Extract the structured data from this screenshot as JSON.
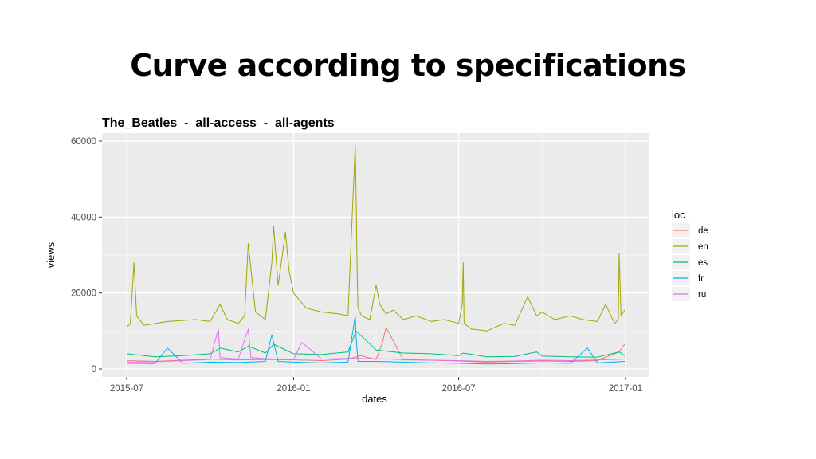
{
  "slide": {
    "title": "Curve according to specifications"
  },
  "chart_data": {
    "type": "line",
    "title": "The_Beatles  -  all-access  -  all-agents",
    "xlabel": "dates",
    "ylabel": "views",
    "xlim": [
      "2015-07-01",
      "2017-01-01"
    ],
    "ylim": [
      0,
      60000
    ],
    "x_ticks": [
      "2015-07",
      "2016-01",
      "2016-07",
      "2017-01"
    ],
    "y_ticks": [
      0,
      20000,
      40000,
      60000
    ],
    "grid": true,
    "legend": {
      "title": "loc",
      "position": "right"
    },
    "series": [
      {
        "name": "de",
        "color": "#F8766D",
        "x": [
          "2015-07-01",
          "2015-08-01",
          "2015-09-01",
          "2015-10-01",
          "2015-11-01",
          "2015-12-01",
          "2016-01-01",
          "2016-02-01",
          "2016-03-01",
          "2016-03-15",
          "2016-04-01",
          "2016-04-08",
          "2016-04-12",
          "2016-05-01",
          "2016-06-01",
          "2016-07-01",
          "2016-08-01",
          "2016-09-01",
          "2016-10-01",
          "2016-11-01",
          "2016-12-01",
          "2016-12-25",
          "2016-12-31"
        ],
        "values": [
          2200,
          2000,
          2300,
          2600,
          2400,
          2500,
          2400,
          2200,
          2600,
          3500,
          2500,
          7000,
          11000,
          2400,
          2300,
          2100,
          1800,
          2000,
          2100,
          2000,
          2200,
          4500,
          6500
        ]
      },
      {
        "name": "en",
        "color": "#A3A500",
        "x": [
          "2015-07-01",
          "2015-07-05",
          "2015-07-09",
          "2015-07-12",
          "2015-07-20",
          "2015-08-15",
          "2015-09-15",
          "2015-10-01",
          "2015-10-12",
          "2015-10-20",
          "2015-11-01",
          "2015-11-08",
          "2015-11-12",
          "2015-11-20",
          "2015-12-01",
          "2015-12-08",
          "2015-12-10",
          "2015-12-15",
          "2015-12-23",
          "2015-12-27",
          "2016-01-01",
          "2016-01-15",
          "2016-02-01",
          "2016-02-20",
          "2016-03-01",
          "2016-03-09",
          "2016-03-10",
          "2016-03-11",
          "2016-03-12",
          "2016-03-16",
          "2016-03-25",
          "2016-04-01",
          "2016-04-05",
          "2016-04-12",
          "2016-04-20",
          "2016-05-01",
          "2016-05-15",
          "2016-06-01",
          "2016-06-15",
          "2016-07-01",
          "2016-07-05",
          "2016-07-06",
          "2016-07-07",
          "2016-07-15",
          "2016-08-01",
          "2016-08-20",
          "2016-09-01",
          "2016-09-15",
          "2016-09-25",
          "2016-10-01",
          "2016-10-15",
          "2016-11-01",
          "2016-11-15",
          "2016-12-01",
          "2016-12-10",
          "2016-12-20",
          "2016-12-24",
          "2016-12-25",
          "2016-12-27",
          "2016-12-31"
        ],
        "values": [
          11000,
          12000,
          28000,
          14000,
          11500,
          12500,
          13000,
          12500,
          17000,
          13000,
          12000,
          14000,
          33000,
          15000,
          13000,
          28000,
          37500,
          22000,
          36000,
          26000,
          20000,
          16000,
          15000,
          14500,
          14000,
          59000,
          44000,
          27000,
          16000,
          14000,
          13000,
          22000,
          17000,
          14500,
          15500,
          13000,
          14000,
          12500,
          13000,
          12000,
          17000,
          28000,
          12000,
          10500,
          10000,
          12000,
          11500,
          19000,
          14000,
          15000,
          13000,
          14000,
          13000,
          12500,
          17000,
          12000,
          13000,
          30500,
          14000,
          15500
        ]
      },
      {
        "name": "es",
        "color": "#00BF7D",
        "x": [
          "2015-07-01",
          "2015-08-01",
          "2015-09-01",
          "2015-10-01",
          "2015-10-12",
          "2015-11-01",
          "2015-11-12",
          "2015-12-01",
          "2015-12-10",
          "2016-01-01",
          "2016-02-01",
          "2016-03-01",
          "2016-03-10",
          "2016-04-01",
          "2016-05-01",
          "2016-06-01",
          "2016-07-01",
          "2016-07-06",
          "2016-08-01",
          "2016-09-01",
          "2016-09-25",
          "2016-10-01",
          "2016-11-01",
          "2016-12-01",
          "2016-12-25",
          "2016-12-31"
        ],
        "values": [
          4000,
          3200,
          3500,
          4000,
          5500,
          4500,
          6000,
          4200,
          6500,
          4000,
          3800,
          4500,
          10000,
          5000,
          4200,
          4000,
          3500,
          4200,
          3200,
          3300,
          4500,
          3400,
          3200,
          3100,
          4500,
          3500
        ]
      },
      {
        "name": "fr",
        "color": "#00B0F6",
        "x": [
          "2015-07-01",
          "2015-08-01",
          "2015-08-15",
          "2015-09-01",
          "2015-10-01",
          "2015-11-01",
          "2015-12-01",
          "2015-12-08",
          "2015-12-10",
          "2015-12-15",
          "2016-01-01",
          "2016-02-01",
          "2016-03-01",
          "2016-03-09",
          "2016-03-10",
          "2016-03-12",
          "2016-04-01",
          "2016-05-01",
          "2016-06-01",
          "2016-07-01",
          "2016-08-01",
          "2016-09-01",
          "2016-10-01",
          "2016-11-01",
          "2016-11-20",
          "2016-12-01",
          "2016-12-31"
        ],
        "values": [
          1500,
          1400,
          5500,
          1500,
          1800,
          1700,
          2000,
          9000,
          7000,
          2000,
          1800,
          1600,
          1800,
          14000,
          8000,
          2000,
          2000,
          1800,
          1600,
          1500,
          1300,
          1400,
          1600,
          1500,
          5500,
          1600,
          2000
        ]
      },
      {
        "name": "ru",
        "color": "#E76BF3",
        "x": [
          "2015-07-01",
          "2015-08-01",
          "2015-09-01",
          "2015-10-01",
          "2015-10-10",
          "2015-10-12",
          "2015-11-01",
          "2015-11-12",
          "2015-11-15",
          "2015-12-01",
          "2016-01-01",
          "2016-01-10",
          "2016-02-01",
          "2016-03-01",
          "2016-04-01",
          "2016-05-01",
          "2016-06-01",
          "2016-07-01",
          "2016-08-01",
          "2016-09-01",
          "2016-10-01",
          "2016-11-01",
          "2016-12-01",
          "2016-12-31"
        ],
        "values": [
          1800,
          1900,
          2200,
          2500,
          10500,
          3000,
          2600,
          10500,
          3000,
          2700,
          2500,
          7000,
          2600,
          2800,
          2700,
          2500,
          2300,
          2200,
          2000,
          2100,
          2300,
          2200,
          2400,
          2600
        ]
      }
    ]
  }
}
